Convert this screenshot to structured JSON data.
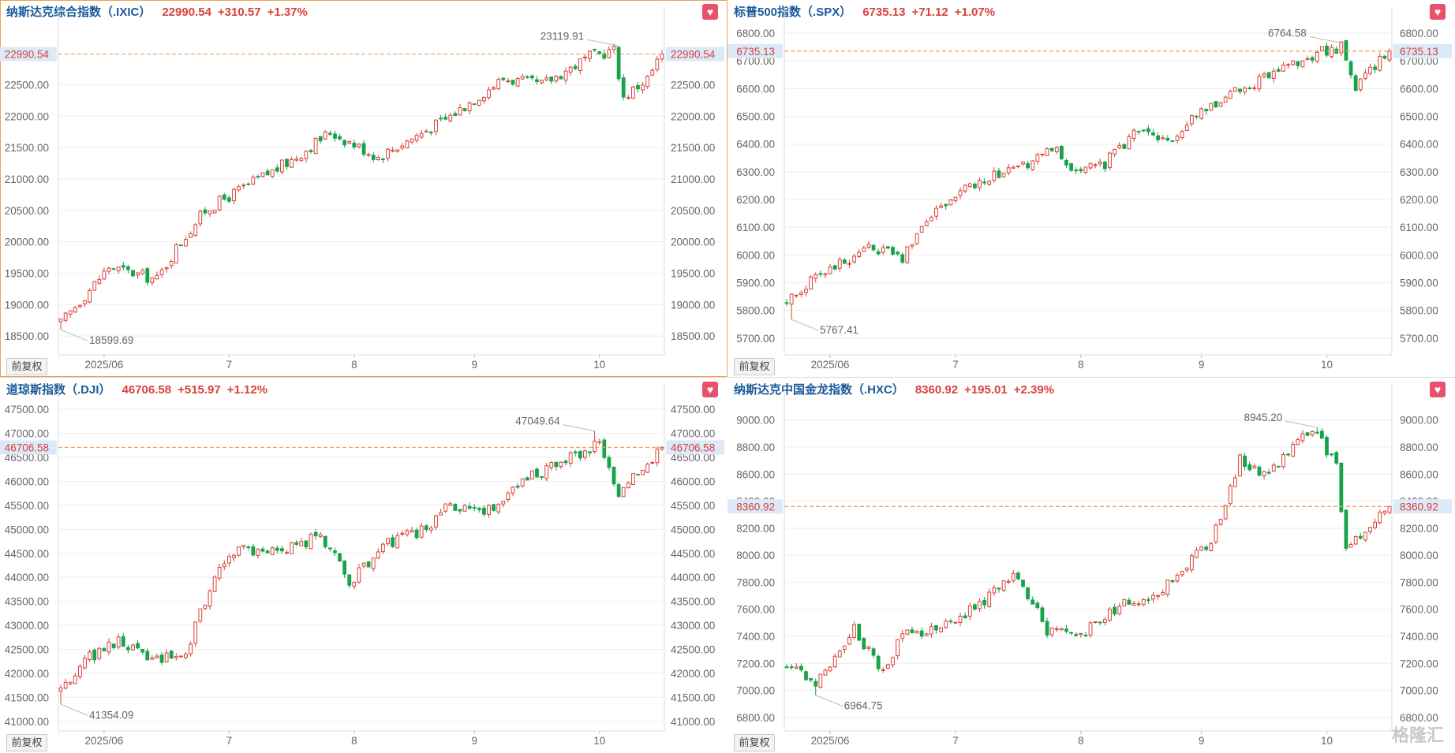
{
  "colors": {
    "up": "#d9423a",
    "down": "#16a34a",
    "price_line": "#e8a060",
    "grid": "#eeeeee",
    "title": "#1a5a9a"
  },
  "adj_button_label": "前复权",
  "watermark": "格隆汇",
  "panels": [
    {
      "name": "纳斯达克综合指数（.IXIC）",
      "price": "22990.54",
      "change": "+310.57",
      "pct": "+1.37%",
      "chart_data": {
        "type": "candlestick",
        "ylim": [
          18200,
          23500
        ],
        "yticks": [
          "18500.00",
          "19000.00",
          "19500.00",
          "20000.00",
          "20500.00",
          "21000.00",
          "21500.00",
          "22000.00",
          "22500.00"
        ],
        "ytick_values": [
          18500,
          19000,
          19500,
          20000,
          20500,
          21000,
          21500,
          22000,
          22500
        ],
        "xticks": [
          "2025/06",
          "7",
          "8",
          "9",
          "10"
        ],
        "xtick_index": [
          9,
          35,
          61,
          86,
          112
        ],
        "last_price": 22990.54,
        "last_price_label": "22990.54",
        "high_label": "23119.91",
        "high_value": 23119.91,
        "high_index": 116,
        "low_label": "18599.69",
        "low_value": 18599.69,
        "low_index": 0,
        "start": 18700,
        "end": 22990.54,
        "anchors": [
          [
            0,
            18700
          ],
          [
            10,
            19600
          ],
          [
            20,
            19400
          ],
          [
            24,
            19900
          ],
          [
            30,
            20500
          ],
          [
            40,
            20950
          ],
          [
            48,
            21300
          ],
          [
            56,
            21750
          ],
          [
            66,
            21350
          ],
          [
            80,
            21950
          ],
          [
            92,
            22600
          ],
          [
            100,
            22500
          ],
          [
            110,
            22950
          ],
          [
            115,
            23050
          ],
          [
            117,
            22300
          ],
          [
            122,
            22600
          ],
          [
            125,
            22990
          ]
        ]
      }
    },
    {
      "name": "标普500指数（.SPX）",
      "price": "6735.13",
      "change": "+71.12",
      "pct": "+1.07%",
      "chart_data": {
        "type": "candlestick",
        "ylim": [
          5640,
          6840
        ],
        "yticks": [
          "5700.00",
          "5800.00",
          "5900.00",
          "6000.00",
          "6100.00",
          "6200.00",
          "6300.00",
          "6400.00",
          "6500.00",
          "6600.00",
          "6700.00",
          "6800.00"
        ],
        "ytick_values": [
          5700,
          5800,
          5900,
          6000,
          6100,
          6200,
          6300,
          6400,
          6500,
          6600,
          6700,
          6800
        ],
        "xticks": [
          "2025/06",
          "7",
          "8",
          "9",
          "10"
        ],
        "xtick_index": [
          9,
          35,
          61,
          86,
          112
        ],
        "last_price": 6735.13,
        "last_price_label": "6735.13",
        "high_label": "6764.58",
        "high_value": 6764.58,
        "high_index": 115,
        "low_label": "5767.41",
        "low_value": 5767.41,
        "low_index": 1,
        "start": 5830,
        "end": 6735.13,
        "anchors": [
          [
            0,
            5830
          ],
          [
            8,
            5950
          ],
          [
            18,
            6030
          ],
          [
            24,
            5990
          ],
          [
            30,
            6150
          ],
          [
            40,
            6270
          ],
          [
            50,
            6320
          ],
          [
            56,
            6390
          ],
          [
            60,
            6290
          ],
          [
            66,
            6330
          ],
          [
            72,
            6440
          ],
          [
            80,
            6430
          ],
          [
            90,
            6560
          ],
          [
            100,
            6640
          ],
          [
            110,
            6730
          ],
          [
            115,
            6750
          ],
          [
            118,
            6600
          ],
          [
            122,
            6680
          ],
          [
            125,
            6735
          ]
        ]
      }
    },
    {
      "name": "道琼斯指数（.DJI）",
      "price": "46706.58",
      "change": "+515.97",
      "pct": "+1.12%",
      "chart_data": {
        "type": "candlestick",
        "ylim": [
          40800,
          47700
        ],
        "yticks": [
          "41000.00",
          "41500.00",
          "42000.00",
          "42500.00",
          "43000.00",
          "43500.00",
          "44000.00",
          "44500.00",
          "45000.00",
          "45500.00",
          "46000.00",
          "46500.00",
          "47000.00",
          "47500.00"
        ],
        "ytick_values": [
          41000,
          41500,
          42000,
          42500,
          43000,
          43500,
          44000,
          44500,
          45000,
          45500,
          46000,
          46500,
          47000,
          47500
        ],
        "xticks": [
          "2025/06",
          "7",
          "8",
          "9",
          "10"
        ],
        "xtick_index": [
          9,
          35,
          61,
          86,
          112
        ],
        "last_price": 46706.58,
        "last_price_label": "46706.58",
        "high_label": "47049.64",
        "high_value": 47049.64,
        "high_index": 111,
        "low_label": "41354.09",
        "low_value": 41354.09,
        "low_index": 0,
        "start": 41600,
        "end": 46706.58,
        "anchors": [
          [
            0,
            41600
          ],
          [
            4,
            42200
          ],
          [
            12,
            42700
          ],
          [
            18,
            42300
          ],
          [
            26,
            42400
          ],
          [
            32,
            44100
          ],
          [
            38,
            44600
          ],
          [
            46,
            44500
          ],
          [
            54,
            44900
          ],
          [
            60,
            43900
          ],
          [
            68,
            44700
          ],
          [
            76,
            45000
          ],
          [
            80,
            45500
          ],
          [
            88,
            45300
          ],
          [
            96,
            46000
          ],
          [
            104,
            46400
          ],
          [
            112,
            46800
          ],
          [
            116,
            45800
          ],
          [
            122,
            46300
          ],
          [
            125,
            46706
          ]
        ]
      }
    },
    {
      "name": "纳斯达克中国金龙指数（.HXC）",
      "price": "8360.92",
      "change": "+195.01",
      "pct": "+2.39%",
      "chart_data": {
        "type": "candlestick",
        "ylim": [
          6700,
          9150
        ],
        "yticks": [
          "6800.00",
          "7000.00",
          "7200.00",
          "7400.00",
          "7600.00",
          "7800.00",
          "8000.00",
          "8200.00",
          "8400.00",
          "8600.00",
          "8800.00",
          "9000.00"
        ],
        "ytick_values": [
          6800,
          7000,
          7200,
          7400,
          7600,
          7800,
          8000,
          8200,
          8400,
          8600,
          8800,
          9000
        ],
        "xticks": [
          "2025/06",
          "7",
          "8",
          "9",
          "10"
        ],
        "xtick_index": [
          9,
          35,
          61,
          86,
          112
        ],
        "last_price": 8360.92,
        "last_price_label": "8360.92",
        "high_label": "8945.20",
        "high_value": 8945.2,
        "high_index": 110,
        "low_label": "6964.75",
        "low_value": 6964.75,
        "low_index": 6,
        "start": 7180,
        "end": 8360.92,
        "anchors": [
          [
            0,
            7180
          ],
          [
            6,
            7050
          ],
          [
            14,
            7450
          ],
          [
            20,
            7150
          ],
          [
            24,
            7400
          ],
          [
            32,
            7450
          ],
          [
            40,
            7650
          ],
          [
            48,
            7850
          ],
          [
            54,
            7450
          ],
          [
            60,
            7400
          ],
          [
            70,
            7650
          ],
          [
            76,
            7700
          ],
          [
            82,
            7900
          ],
          [
            88,
            8100
          ],
          [
            94,
            8700
          ],
          [
            100,
            8600
          ],
          [
            106,
            8850
          ],
          [
            110,
            8900
          ],
          [
            114,
            8650
          ],
          [
            116,
            8050
          ],
          [
            120,
            8200
          ],
          [
            125,
            8360
          ]
        ]
      }
    }
  ]
}
